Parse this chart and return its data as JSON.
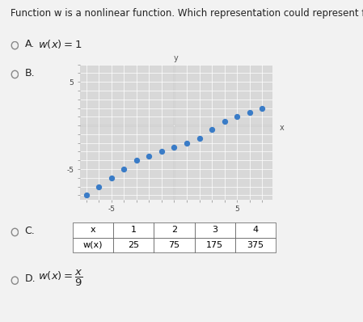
{
  "question": "Function w is a nonlinear function. Which representation could represent function w?",
  "bg_color": "#f2f2f2",
  "option_A_text": "w(x) = 1",
  "scatter_points_x": [
    -7,
    -6,
    -5,
    -4,
    -3,
    -2,
    -1,
    0,
    1,
    2,
    3,
    4,
    5,
    6,
    7
  ],
  "scatter_points_y": [
    -8,
    -7,
    -6,
    -5,
    -4,
    -3.5,
    -3,
    -2.5,
    -2,
    -1.5,
    -0.5,
    0.5,
    1,
    1.5,
    2
  ],
  "dot_color": "#3a7cc7",
  "dot_size": 18,
  "graph_xlim": [
    -7.5,
    7.8
  ],
  "graph_ylim": [
    -8.5,
    7
  ],
  "graph_xtick_show": [
    -5,
    5
  ],
  "graph_ytick_show": [
    5,
    -5
  ],
  "table_x_vals": [
    "x",
    "1",
    "2",
    "3",
    "4"
  ],
  "table_wx_vals": [
    "w(x)",
    "25",
    "75",
    "175",
    "375"
  ],
  "font_size_question": 8.5,
  "font_size_option": 9,
  "font_size_table": 8,
  "graph_bg": "#d8d8d8",
  "graph_grid_color": "#ffffff"
}
